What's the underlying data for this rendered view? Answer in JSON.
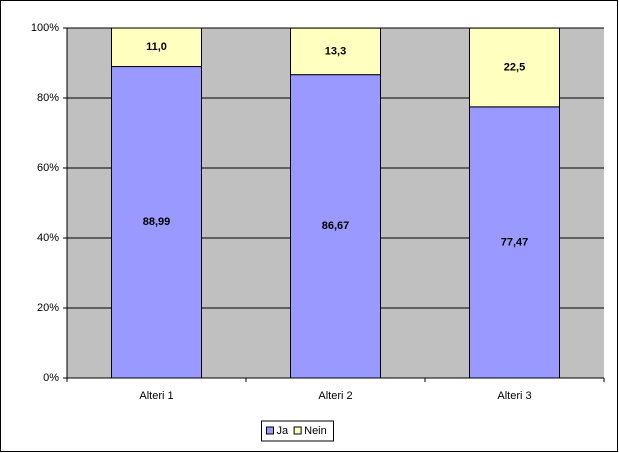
{
  "chart_data": {
    "type": "stacked_bar",
    "categories": [
      "Alteri 1",
      "Alteri 2",
      "Alteri 3"
    ],
    "series": [
      {
        "name": "Ja",
        "color": "#9999ff",
        "values": [
          88.99,
          86.67,
          77.47
        ],
        "value_labels": [
          "88,99",
          "86,67",
          "77,47"
        ]
      },
      {
        "name": "Nein",
        "color": "#ffffc0",
        "values": [
          11.0,
          13.3,
          22.5
        ],
        "value_labels": [
          "11,0",
          "13,3",
          "22,5"
        ]
      }
    ],
    "ylim": [
      0,
      100
    ],
    "yticks": [
      {
        "value": 0,
        "label": "0%"
      },
      {
        "value": 20,
        "label": "20%"
      },
      {
        "value": 40,
        "label": "40%"
      },
      {
        "value": 60,
        "label": "60%"
      },
      {
        "value": 80,
        "label": "80%"
      },
      {
        "value": 100,
        "label": "100%"
      }
    ],
    "grid": true,
    "legend": "bottom"
  }
}
